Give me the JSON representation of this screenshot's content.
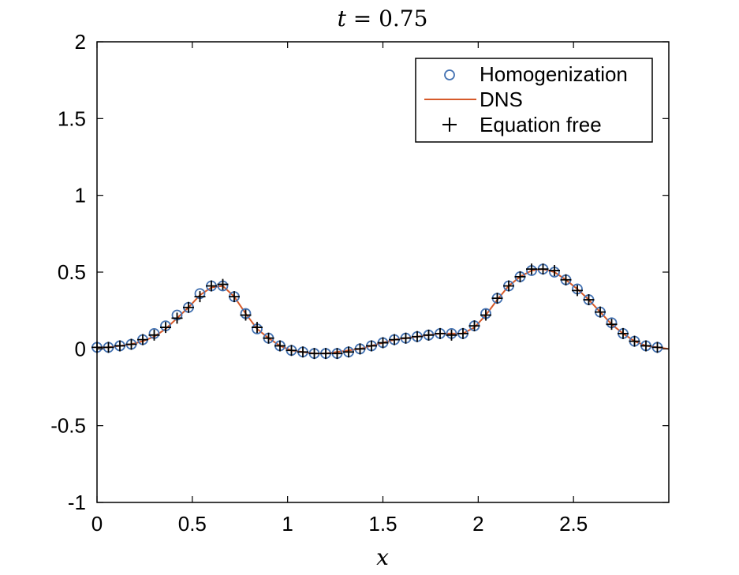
{
  "chart_data": {
    "type": "line",
    "title": {
      "var": "t",
      "op": " = ",
      "value": "0.75"
    },
    "xlabel": "x",
    "ylabel": "",
    "xlim": [
      0,
      3
    ],
    "ylim": [
      -1,
      2
    ],
    "xticks": [
      0,
      0.5,
      1,
      1.5,
      2,
      2.5
    ],
    "xtick_labels": [
      "0",
      "0.5",
      "1",
      "1.5",
      "2",
      "2.5"
    ],
    "yticks": [
      -1,
      -0.5,
      0,
      0.5,
      1,
      1.5,
      2
    ],
    "ytick_labels": [
      "-1",
      "-0.5",
      "0",
      "0.5",
      "1",
      "1.5",
      "2"
    ],
    "grid": false,
    "legend_position": "top-right",
    "colors": {
      "homogenization": "#4472b2",
      "dns": "#d65a2a",
      "equation_free": "#000000"
    },
    "series": [
      {
        "name": "Homogenization",
        "marker": "circle",
        "x": [
          0,
          0.06,
          0.12,
          0.18,
          0.24,
          0.3,
          0.36,
          0.42,
          0.48,
          0.54,
          0.6,
          0.66,
          0.72,
          0.78,
          0.84,
          0.9,
          0.96,
          1.02,
          1.08,
          1.14,
          1.2,
          1.26,
          1.32,
          1.38,
          1.44,
          1.5,
          1.56,
          1.62,
          1.68,
          1.74,
          1.8,
          1.86,
          1.92,
          1.98,
          2.04,
          2.1,
          2.16,
          2.22,
          2.28,
          2.34,
          2.4,
          2.46,
          2.52,
          2.58,
          2.64,
          2.7,
          2.76,
          2.82,
          2.88,
          2.94
        ],
        "values": [
          0.01,
          0.01,
          0.02,
          0.03,
          0.06,
          0.1,
          0.15,
          0.22,
          0.27,
          0.36,
          0.41,
          0.41,
          0.34,
          0.23,
          0.13,
          0.07,
          0.02,
          -0.01,
          -0.02,
          -0.03,
          -0.03,
          -0.03,
          -0.02,
          0.0,
          0.02,
          0.04,
          0.06,
          0.07,
          0.08,
          0.09,
          0.1,
          0.1,
          0.1,
          0.15,
          0.23,
          0.33,
          0.41,
          0.47,
          0.51,
          0.52,
          0.5,
          0.45,
          0.39,
          0.32,
          0.24,
          0.17,
          0.1,
          0.05,
          0.02,
          0.01
        ]
      },
      {
        "name": "DNS",
        "marker": "line",
        "x": [
          0,
          0.06,
          0.12,
          0.18,
          0.24,
          0.3,
          0.36,
          0.42,
          0.48,
          0.54,
          0.6,
          0.66,
          0.72,
          0.78,
          0.84,
          0.9,
          0.96,
          1.02,
          1.08,
          1.14,
          1.2,
          1.26,
          1.32,
          1.38,
          1.44,
          1.5,
          1.56,
          1.62,
          1.68,
          1.74,
          1.8,
          1.86,
          1.92,
          1.98,
          2.04,
          2.1,
          2.16,
          2.22,
          2.28,
          2.34,
          2.4,
          2.46,
          2.52,
          2.58,
          2.64,
          2.7,
          2.76,
          2.82,
          2.88,
          2.94,
          3.0
        ],
        "values": [
          0.01,
          0.01,
          0.02,
          0.03,
          0.05,
          0.08,
          0.13,
          0.2,
          0.27,
          0.35,
          0.4,
          0.41,
          0.34,
          0.23,
          0.13,
          0.07,
          0.02,
          -0.01,
          -0.02,
          -0.03,
          -0.03,
          -0.02,
          -0.01,
          0.0,
          0.02,
          0.04,
          0.06,
          0.07,
          0.08,
          0.09,
          0.1,
          0.1,
          0.1,
          0.14,
          0.22,
          0.32,
          0.41,
          0.47,
          0.51,
          0.52,
          0.5,
          0.45,
          0.39,
          0.32,
          0.24,
          0.16,
          0.1,
          0.05,
          0.02,
          0.01,
          0.0
        ]
      },
      {
        "name": "Equation free",
        "marker": "plus",
        "x": [
          0,
          0.06,
          0.12,
          0.18,
          0.24,
          0.3,
          0.36,
          0.42,
          0.48,
          0.54,
          0.6,
          0.66,
          0.72,
          0.78,
          0.84,
          0.9,
          0.96,
          1.02,
          1.08,
          1.14,
          1.2,
          1.26,
          1.32,
          1.38,
          1.44,
          1.5,
          1.56,
          1.62,
          1.68,
          1.74,
          1.8,
          1.86,
          1.92,
          1.98,
          2.04,
          2.1,
          2.16,
          2.22,
          2.28,
          2.34,
          2.4,
          2.46,
          2.52,
          2.58,
          2.64,
          2.7,
          2.76,
          2.82,
          2.88,
          2.94
        ],
        "values": [
          0.01,
          0.01,
          0.02,
          0.03,
          0.06,
          0.09,
          0.14,
          0.2,
          0.27,
          0.34,
          0.41,
          0.42,
          0.34,
          0.22,
          0.14,
          0.07,
          0.02,
          -0.01,
          -0.02,
          -0.03,
          -0.03,
          -0.03,
          -0.02,
          0.0,
          0.02,
          0.04,
          0.06,
          0.07,
          0.08,
          0.09,
          0.1,
          0.09,
          0.1,
          0.15,
          0.22,
          0.33,
          0.41,
          0.47,
          0.52,
          0.52,
          0.51,
          0.45,
          0.38,
          0.32,
          0.24,
          0.16,
          0.1,
          0.05,
          0.02,
          0.01
        ]
      }
    ]
  }
}
